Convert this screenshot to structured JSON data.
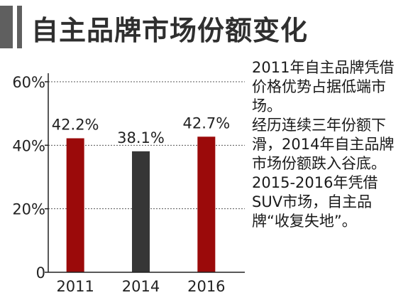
{
  "header": {
    "title": "自主品牌市场份额变化"
  },
  "chart_data": {
    "type": "bar",
    "title": "自主品牌市场份额变化",
    "categories": [
      "2011",
      "2014",
      "2016"
    ],
    "values": [
      42.2,
      38.1,
      42.7
    ],
    "value_labels": [
      "42.2%",
      "38.1%",
      "42.7%"
    ],
    "bar_colors": [
      "#9b0a0a",
      "#363636",
      "#9b0a0a"
    ],
    "yticks": [
      0,
      20,
      40,
      60
    ],
    "ytick_labels": [
      "0",
      "20%",
      "40%",
      "60%"
    ],
    "ylim": [
      0,
      60
    ],
    "grid": true,
    "xlabel": "",
    "ylabel": ""
  },
  "notes": [
    "2011年自主品牌凭借价格优势占据低端市场。",
    "经历连续三年份额下滑，2014年自主品牌市场份额跌入谷底。",
    "2015-2016年凭借SUV市场，自主品牌“收复失地”。"
  ],
  "colors": {
    "accent": "#5f5f5f",
    "bar_red": "#9b0a0a",
    "bar_dark": "#363636"
  }
}
